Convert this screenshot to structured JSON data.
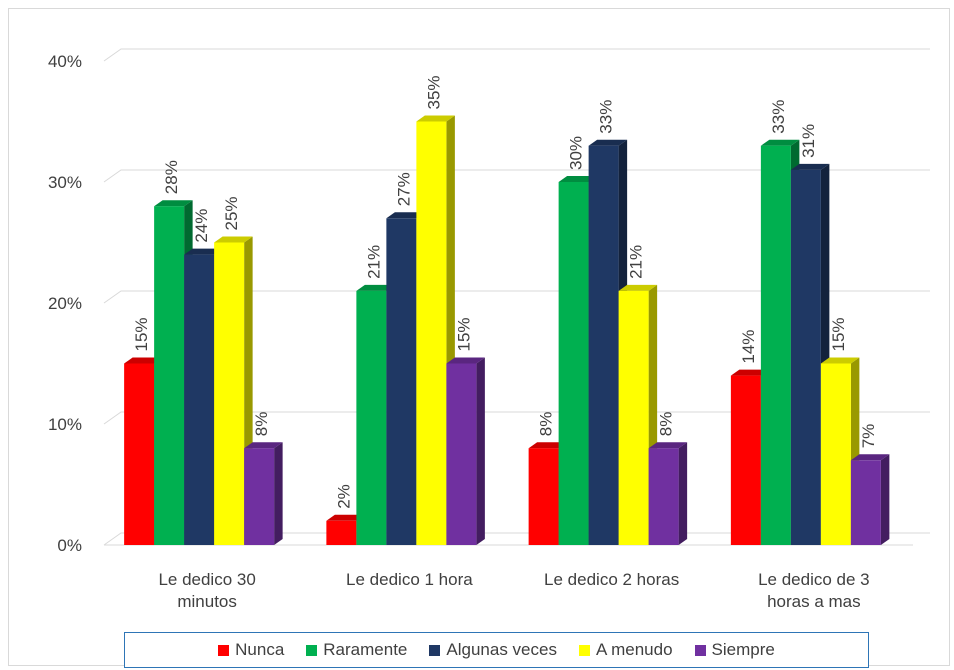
{
  "chart_data": {
    "type": "bar",
    "title": "",
    "xlabel": "",
    "ylabel": "",
    "ylim": [
      0,
      40
    ],
    "yticks": [
      "0%",
      "10%",
      "20%",
      "30%",
      "40%"
    ],
    "grid": true,
    "legend_position": "bottom",
    "categories": [
      [
        "Le dedico 30",
        "minutos"
      ],
      [
        "Le dedico 1 hora"
      ],
      [
        "Le dedico 2 horas"
      ],
      [
        "Le dedico de 3",
        "horas a mas"
      ]
    ],
    "series": [
      {
        "name": "Nunca",
        "color": "#ff0000",
        "values": [
          15,
          2,
          8,
          14
        ],
        "labels": [
          "15%",
          "2%",
          "8%",
          "14%"
        ]
      },
      {
        "name": "Raramente",
        "color": "#00b050",
        "values": [
          28,
          21,
          30,
          33
        ],
        "labels": [
          "28%",
          "21%",
          "30%",
          "33%"
        ]
      },
      {
        "name": "Algunas veces",
        "color": "#1f3864",
        "values": [
          24,
          27,
          33,
          31
        ],
        "labels": [
          "24%",
          "27%",
          "33%",
          "31%"
        ]
      },
      {
        "name": "A menudo",
        "color": "#ffff00",
        "values": [
          25,
          35,
          21,
          15
        ],
        "labels": [
          "25%",
          "35%",
          "21%",
          "15%"
        ]
      },
      {
        "name": "Siempre",
        "color": "#7030a0",
        "values": [
          8,
          15,
          8,
          7
        ],
        "labels": [
          "8%",
          "15%",
          "8%",
          "7%"
        ]
      }
    ]
  }
}
